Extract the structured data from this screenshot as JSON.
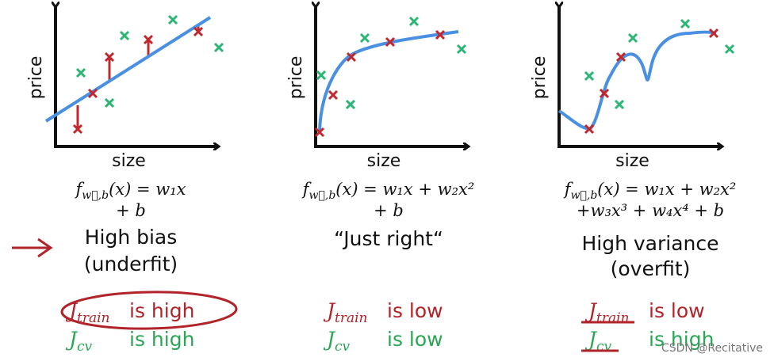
{
  "panels": [
    {
      "y_axis_label": "price",
      "x_axis_label": "size",
      "formula": [
        {
          "f": "f",
          "sub": "w⃗,b",
          "rest": "(x) = w₁x"
        },
        {
          "rest": "+ b"
        }
      ],
      "verdict": [
        "High bias",
        "(underfit)"
      ],
      "j_train": {
        "j": "J",
        "sub": "train",
        "text": "is high"
      },
      "j_cv": {
        "j": "J",
        "sub": "cv",
        "text": "is high"
      }
    },
    {
      "y_axis_label": "price",
      "x_axis_label": "size",
      "formula": [
        {
          "f": "f",
          "sub": "w⃗,b",
          "rest": "(x) = w₁x + w₂x²"
        },
        {
          "rest": "+ b"
        }
      ],
      "verdict": [
        "“Just right“"
      ],
      "j_train": {
        "j": "J",
        "sub": "train",
        "text": "is low"
      },
      "j_cv": {
        "j": "J",
        "sub": "cv",
        "text": "is low"
      }
    },
    {
      "y_axis_label": "price",
      "x_axis_label": "size",
      "formula": [
        {
          "f": "f",
          "sub": "w⃗,b",
          "rest": "(x) = w₁x + w₂x²"
        },
        {
          "rest": "+w₃x³ + w₄x⁴ + b"
        }
      ],
      "verdict": [
        "High variance",
        "(overfit)"
      ],
      "j_train": {
        "j": "J",
        "sub": "train",
        "text": "is low"
      },
      "j_cv": {
        "j": "J",
        "sub": "cv",
        "text": "is high"
      }
    }
  ],
  "watermark": "CSDN @Recitative"
}
